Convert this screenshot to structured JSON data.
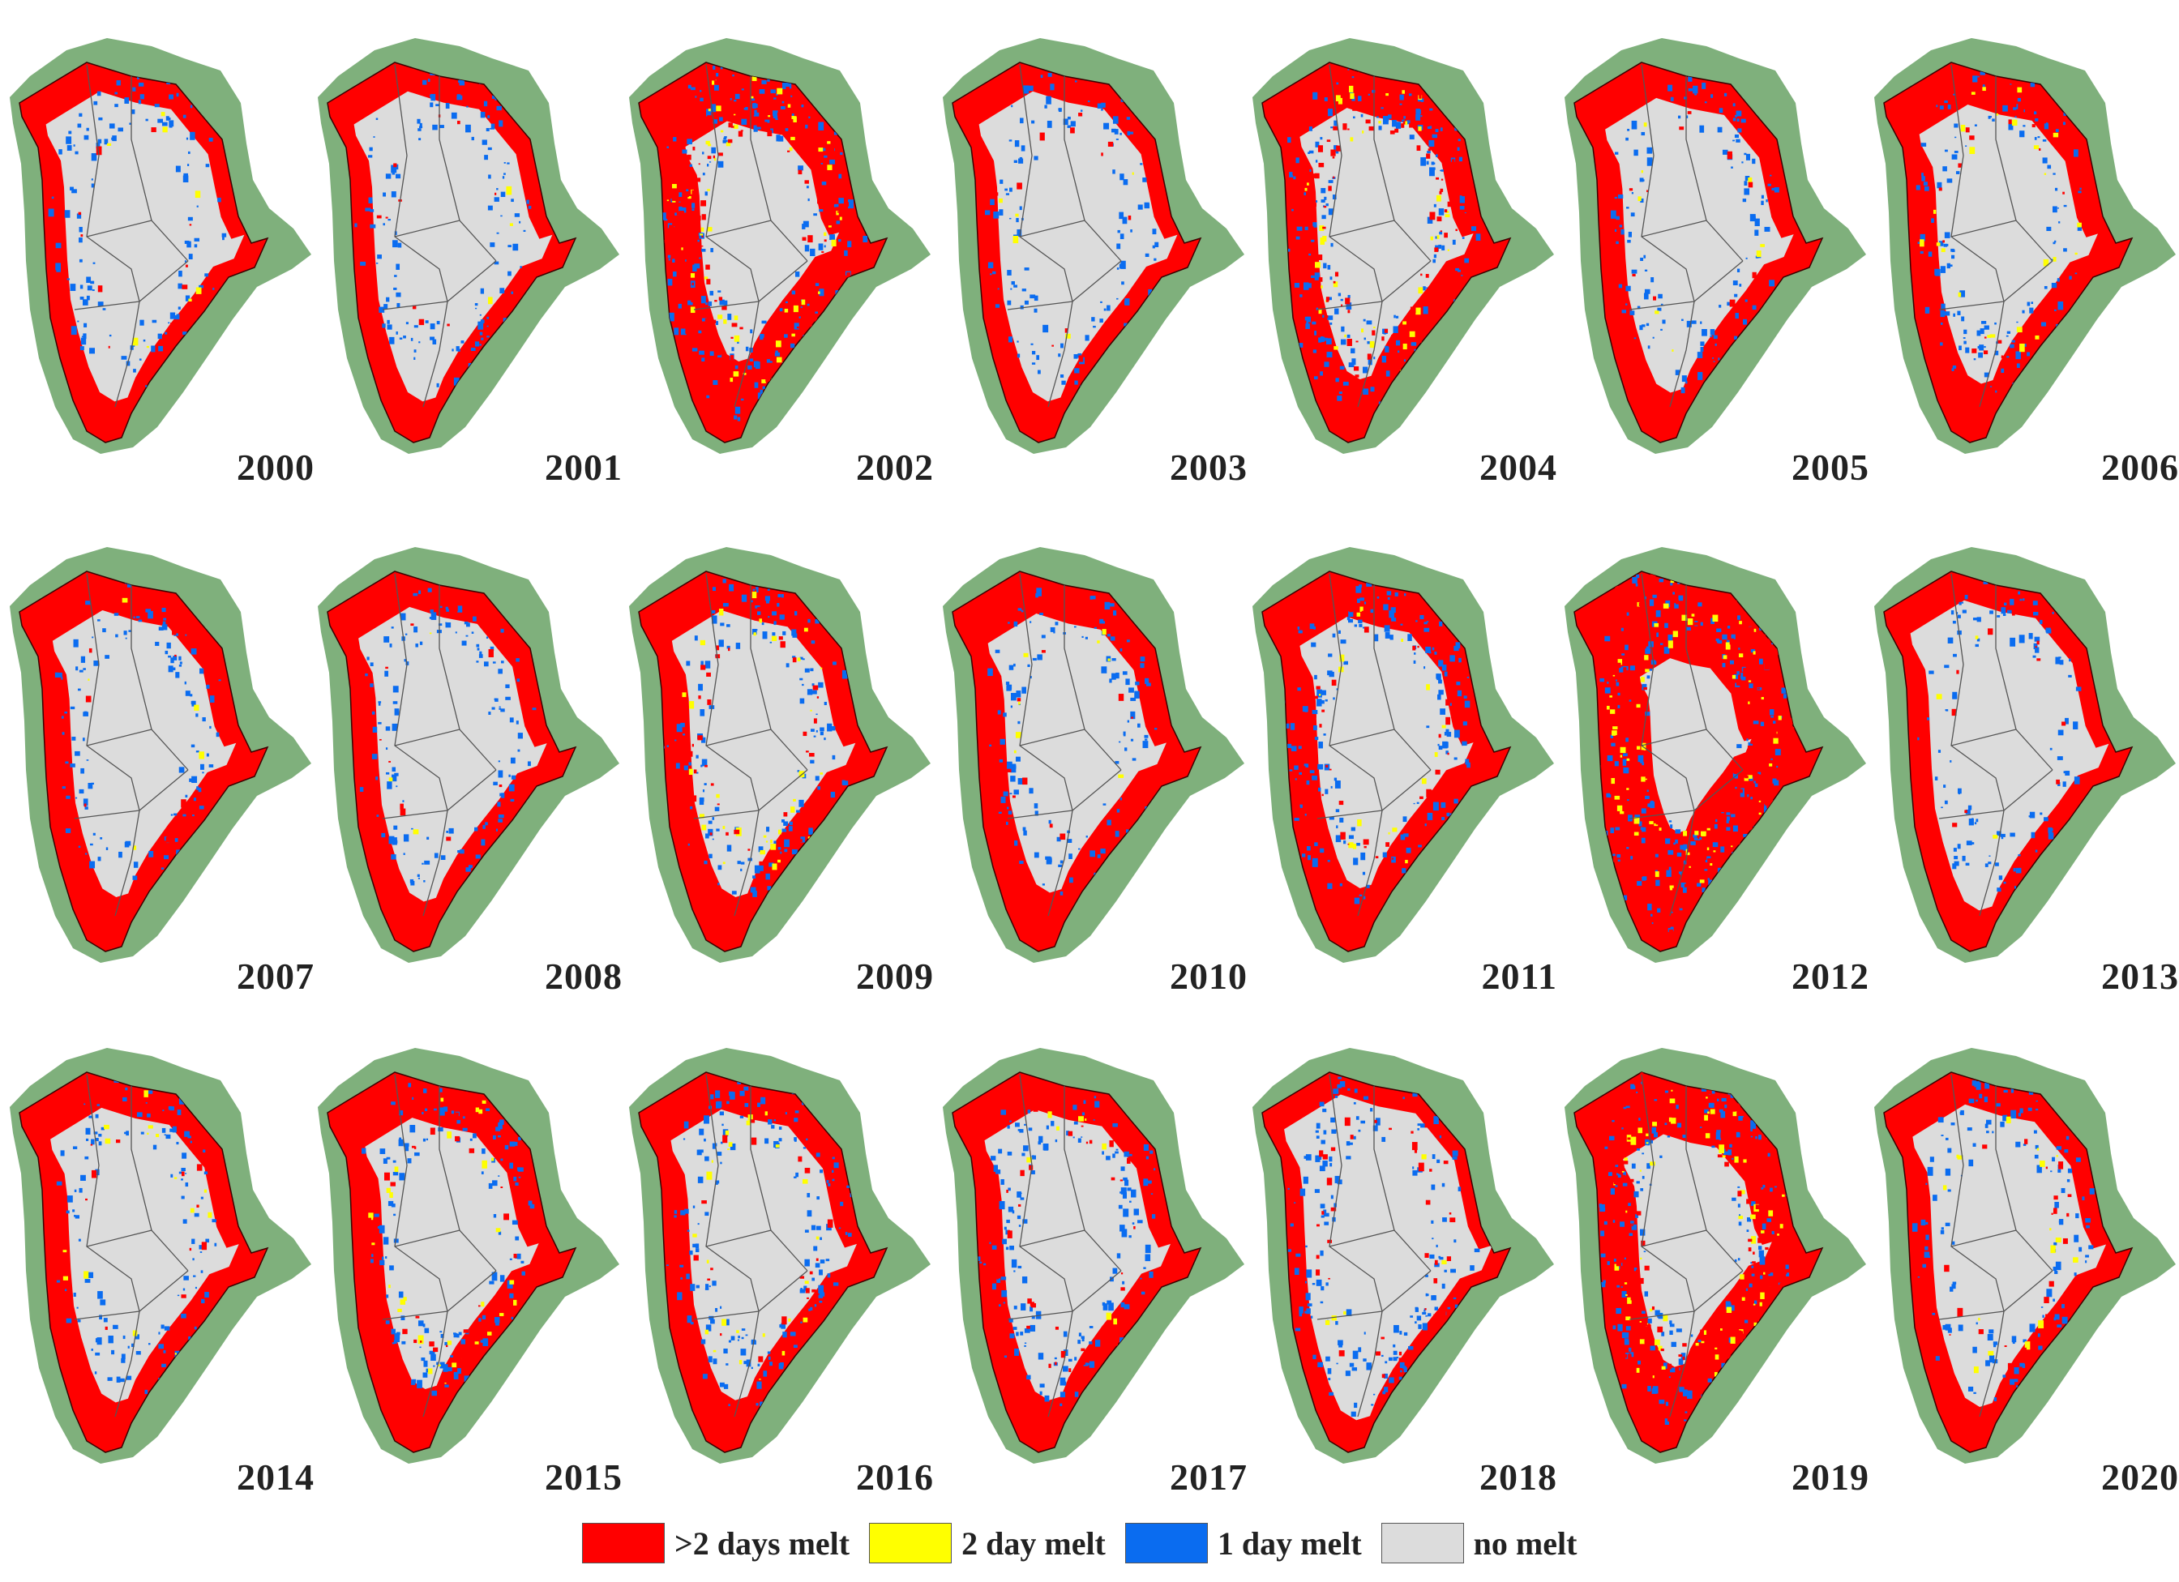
{
  "colors": {
    "heavy": "#ff0000",
    "two": "#ffff00",
    "one": "#0a6cf0",
    "none": "#dcdcdc",
    "land": "#7fb07c",
    "basin": "#555555"
  },
  "panels": [
    {
      "year": "2000",
      "interior": 0.8,
      "blue": 0.3,
      "yellow": 0.05,
      "speckle": 0.05
    },
    {
      "year": "2001",
      "interior": 0.8,
      "blue": 0.35,
      "yellow": 0.02,
      "speckle": 0.05
    },
    {
      "year": "2002",
      "interior": 0.62,
      "blue": 0.7,
      "yellow": 0.4,
      "speckle": 0.7
    },
    {
      "year": "2003",
      "interior": 0.8,
      "blue": 0.3,
      "yellow": 0.03,
      "speckle": 0.05
    },
    {
      "year": "2004",
      "interior": 0.7,
      "blue": 0.65,
      "yellow": 0.25,
      "speckle": 0.55
    },
    {
      "year": "2005",
      "interior": 0.76,
      "blue": 0.3,
      "yellow": 0.05,
      "speckle": 0.05
    },
    {
      "year": "2006",
      "interior": 0.72,
      "blue": 0.4,
      "yellow": 0.15,
      "speckle": 0.1
    },
    {
      "year": "2007",
      "interior": 0.74,
      "blue": 0.25,
      "yellow": 0.03,
      "speckle": 0.05
    },
    {
      "year": "2008",
      "interior": 0.76,
      "blue": 0.3,
      "yellow": 0.02,
      "speckle": 0.05
    },
    {
      "year": "2009",
      "interior": 0.74,
      "blue": 0.4,
      "yellow": 0.2,
      "speckle": 0.15
    },
    {
      "year": "2010",
      "interior": 0.72,
      "blue": 0.3,
      "yellow": 0.05,
      "speckle": 0.05
    },
    {
      "year": "2011",
      "interior": 0.7,
      "blue": 0.6,
      "yellow": 0.1,
      "speckle": 0.2
    },
    {
      "year": "2012",
      "interior": 0.45,
      "blue": 0.8,
      "yellow": 0.5,
      "speckle": 0.9
    },
    {
      "year": "2013",
      "interior": 0.8,
      "blue": 0.2,
      "yellow": 0.02,
      "speckle": 0.05
    },
    {
      "year": "2014",
      "interior": 0.76,
      "blue": 0.25,
      "yellow": 0.1,
      "speckle": 0.05
    },
    {
      "year": "2015",
      "interior": 0.7,
      "blue": 0.4,
      "yellow": 0.2,
      "speckle": 0.1
    },
    {
      "year": "2016",
      "interior": 0.75,
      "blue": 0.45,
      "yellow": 0.15,
      "speckle": 0.1
    },
    {
      "year": "2017",
      "interior": 0.75,
      "blue": 0.5,
      "yellow": 0.05,
      "speckle": 0.15
    },
    {
      "year": "2018",
      "interior": 0.84,
      "blue": 0.55,
      "yellow": 0.03,
      "speckle": 0.2
    },
    {
      "year": "2019",
      "interior": 0.6,
      "blue": 0.75,
      "yellow": 0.45,
      "speckle": 0.85
    },
    {
      "year": "2020",
      "interior": 0.78,
      "blue": 0.35,
      "yellow": 0.1,
      "speckle": 0.1
    }
  ],
  "legend": [
    {
      "label": ">2 days melt",
      "color": "#ff0000"
    },
    {
      "label": "2 day melt",
      "color": "#ffff00"
    },
    {
      "label": "1 day melt",
      "color": "#0a6cf0"
    },
    {
      "label": "no melt",
      "color": "#dcdcdc"
    }
  ]
}
